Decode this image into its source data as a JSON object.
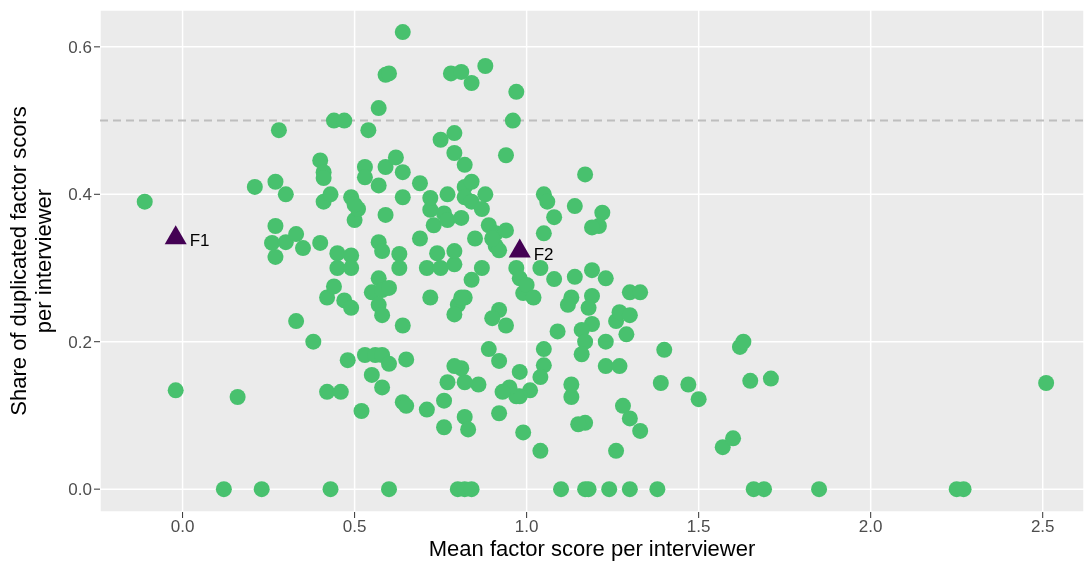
{
  "chart_data": {
    "type": "scatter",
    "xlabel": "Mean factor score per interviewer",
    "ylabel": "Share of duplicated factor scors\nper interviewer",
    "xlim": [
      -0.24,
      2.62
    ],
    "ylim": [
      -0.031,
      0.65
    ],
    "xticks": [
      {
        "value": 0,
        "label": "0.0"
      },
      {
        "value": 0.5,
        "label": "0.5"
      },
      {
        "value": 1,
        "label": "1.0"
      },
      {
        "value": 1.5,
        "label": "1.5"
      },
      {
        "value": 2,
        "label": "2.0"
      },
      {
        "value": 2.5,
        "label": "2.5"
      }
    ],
    "yticks": [
      {
        "value": 0,
        "label": "0.0"
      },
      {
        "value": 0.2,
        "label": "0.2"
      },
      {
        "value": 0.4,
        "label": "0.4"
      },
      {
        "value": 0.6,
        "label": "0.6"
      }
    ],
    "grid": true,
    "ref_lines": [
      {
        "axis": "y",
        "value": 0.5,
        "color": "#bebebe",
        "line_style": "dashed"
      }
    ],
    "annotations": [
      {
        "text": "F1",
        "x": -0.02,
        "y": 0.343
      },
      {
        "text": "F2",
        "x": 0.98,
        "y": 0.325
      }
    ],
    "series": [
      {
        "color": "#48c16e",
        "marker": "circle",
        "x": [
          -0.11,
          -0.02,
          0.16,
          0.12,
          0.23,
          0.43,
          0.6,
          0.8,
          0.82,
          0.84,
          1.1,
          1.17,
          1.18,
          1.24,
          1.3,
          1.38,
          1.66,
          1.69,
          1.85,
          2.25,
          2.27,
          2.51,
          0.28,
          0.21,
          0.27,
          0.3,
          0.27,
          0.26,
          0.27,
          0.3,
          0.33,
          0.35,
          0.33,
          0.38,
          0.4,
          0.41,
          0.41,
          0.41,
          0.43,
          0.4,
          0.42,
          0.44,
          0.42,
          0.46,
          0.44,
          0.47,
          0.45,
          0.45,
          0.49,
          0.49,
          0.47,
          0.49,
          0.48,
          0.49,
          0.5,
          0.51,
          0.5,
          0.52,
          0.54,
          0.57,
          0.53,
          0.53,
          0.57,
          0.59,
          0.59,
          0.6,
          0.62,
          0.64,
          0.64,
          0.64,
          0.69,
          0.59,
          0.55,
          0.57,
          0.58,
          0.6,
          0.57,
          0.58,
          0.63,
          0.63,
          0.57,
          0.58,
          0.53,
          0.56,
          0.58,
          0.55,
          0.58,
          0.6,
          0.64,
          0.65,
          0.64,
          0.65,
          0.69,
          0.72,
          0.72,
          0.73,
          0.71,
          0.72,
          0.71,
          0.75,
          0.76,
          0.77,
          0.77,
          0.74,
          0.75,
          0.79,
          0.79,
          0.78,
          0.79,
          0.79,
          0.81,
          0.84,
          0.88,
          0.82,
          0.84,
          0.82,
          0.84,
          0.81,
          0.82,
          0.84,
          0.82,
          0.8,
          0.79,
          0.81,
          0.85,
          0.88,
          0.87,
          0.89,
          0.91,
          0.91,
          0.92,
          0.9,
          0.87,
          0.94,
          0.94,
          0.96,
          0.97,
          0.97,
          0.98,
          0.99,
          1.0,
          1.02,
          1.04,
          1.05,
          1.06,
          1.05,
          1.08,
          1.08,
          1.14,
          1.13,
          1.12,
          1.17,
          1.14,
          1.22,
          1.21,
          1.19,
          1.23,
          1.19,
          1.19,
          1.18,
          1.19,
          1.16,
          1.17,
          1.16,
          1.23,
          1.23,
          1.27,
          1.26,
          1.27,
          1.29,
          1.3,
          1.33,
          1.3,
          1.28,
          1.3,
          1.33,
          1.26,
          1.17,
          1.15,
          1.13,
          1.13,
          1.09,
          1.05,
          1.05,
          1.04,
          1.04,
          1.01,
          0.99,
          0.98,
          0.97,
          0.95,
          0.98,
          0.93,
          0.92,
          0.92,
          0.94,
          0.9,
          0.89,
          0.92,
          0.86,
          0.82,
          0.82,
          0.83,
          0.81,
          0.79,
          0.77,
          0.76,
          0.76,
          1.39,
          1.4,
          1.47,
          1.5,
          1.57,
          1.6,
          1.62,
          1.63,
          1.65,
          1.71
        ],
        "values": [
          0.39,
          0.134,
          0.125,
          0,
          0,
          0,
          0,
          0,
          0,
          0,
          0,
          0,
          0,
          0,
          0,
          0,
          0,
          0,
          0,
          0,
          0,
          0.144,
          0.487,
          0.41,
          0.417,
          0.4,
          0.357,
          0.334,
          0.315,
          0.335,
          0.346,
          0.327,
          0.228,
          0.2,
          0.446,
          0.43,
          0.422,
          0.39,
          0.4,
          0.334,
          0.26,
          0.275,
          0.132,
          0.132,
          0.5,
          0.5,
          0.32,
          0.3,
          0.317,
          0.3,
          0.256,
          0.246,
          0.175,
          0.396,
          0.365,
          0.38,
          0.386,
          0.106,
          0.487,
          0.517,
          0.437,
          0.423,
          0.412,
          0.437,
          0.562,
          0.564,
          0.45,
          0.43,
          0.62,
          0.396,
          0.415,
          0.372,
          0.267,
          0.286,
          0.27,
          0.273,
          0.335,
          0.323,
          0.319,
          0.3,
          0.25,
          0.236,
          0.182,
          0.182,
          0.182,
          0.155,
          0.138,
          0.17,
          0.118,
          0.113,
          0.222,
          0.176,
          0.34,
          0.379,
          0.395,
          0.358,
          0.3,
          0.26,
          0.108,
          0.474,
          0.374,
          0.4,
          0.365,
          0.32,
          0.3,
          0.305,
          0.323,
          0.564,
          0.483,
          0.456,
          0.566,
          0.551,
          0.574,
          0.41,
          0.417,
          0.396,
          0.39,
          0.368,
          0.44,
          0.284,
          0.26,
          0.25,
          0.237,
          0.26,
          0.34,
          0.4,
          0.38,
          0.358,
          0.347,
          0.33,
          0.324,
          0.34,
          0.3,
          0.351,
          0.453,
          0.5,
          0.539,
          0.3,
          0.286,
          0.266,
          0.277,
          0.26,
          0.3,
          0.4,
          0.39,
          0.347,
          0.369,
          0.285,
          0.288,
          0.26,
          0.25,
          0.427,
          0.384,
          0.375,
          0.357,
          0.355,
          0.286,
          0.297,
          0.262,
          0.246,
          0.224,
          0.216,
          0.2,
          0.183,
          0.2,
          0.167,
          0.167,
          0.228,
          0.24,
          0.21,
          0.267,
          0.267,
          0.236,
          0.113,
          0.096,
          0.079,
          0.052,
          0.09,
          0.088,
          0.125,
          0.142,
          0.214,
          0.19,
          0.168,
          0.152,
          0.052,
          0.134,
          0.077,
          0.126,
          0.126,
          0.138,
          0.159,
          0.132,
          0.103,
          0.243,
          0.222,
          0.232,
          0.19,
          0.174,
          0.142,
          0.145,
          0.098,
          0.081,
          0.164,
          0.167,
          0.145,
          0.084,
          0.12,
          0.144,
          0.189,
          0.142,
          0.122,
          0.057,
          0.069,
          0.193,
          0.2,
          0.147,
          0.15
        ]
      },
      {
        "color": "#440154",
        "marker": "triangle",
        "x": [
          -0.02,
          0.98
        ],
        "values": [
          0.343,
          0.325
        ]
      }
    ]
  }
}
